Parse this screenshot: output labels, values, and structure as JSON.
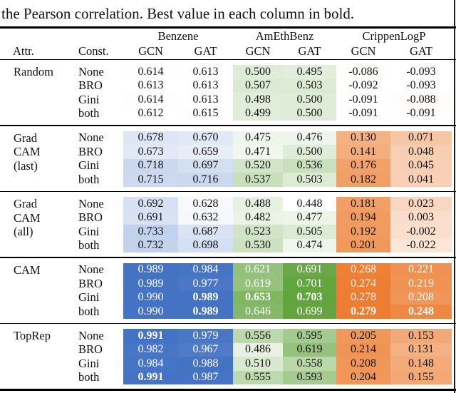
{
  "caption": "the Pearson correlation. Best value in each column in bold.",
  "header": {
    "attr": "Attr.",
    "constraint": "Const.",
    "sub": [
      "GCN",
      "GAT"
    ],
    "groups": [
      {
        "label": "Benzene",
        "color": "#4472c4",
        "min": 0.612,
        "max": 0.991
      },
      {
        "label": "AmEthBenz",
        "color": "#62a43d",
        "min": 0.448,
        "max": 0.703
      },
      {
        "label": "CrippenLogP",
        "color": "#ed7d31",
        "min": -0.093,
        "max": 0.279
      }
    ]
  },
  "sections": [
    {
      "attr_lines": [
        "Random"
      ],
      "white_cols": [],
      "bold": [],
      "rows": [
        {
          "constraint": "None",
          "values": [
            "0.614",
            "0.613",
            "0.500",
            "0.495",
            "-0.086",
            "-0.093"
          ]
        },
        {
          "constraint": "BRO",
          "values": [
            "0.613",
            "0.613",
            "0.507",
            "0.503",
            "-0.092",
            "-0.093"
          ]
        },
        {
          "constraint": "Gini",
          "values": [
            "0.614",
            "0.613",
            "0.498",
            "0.500",
            "-0.091",
            "-0.088"
          ]
        },
        {
          "constraint": "both",
          "values": [
            "0.612",
            "0.615",
            "0.499",
            "0.500",
            "-0.091",
            "-0.091"
          ]
        }
      ]
    },
    {
      "attr_lines": [
        "Grad",
        "CAM",
        "(last)"
      ],
      "white_cols": [],
      "bold": [],
      "rows": [
        {
          "constraint": "None",
          "values": [
            "0.678",
            "0.670",
            "0.475",
            "0.476",
            "0.130",
            "0.071"
          ]
        },
        {
          "constraint": "BRO",
          "values": [
            "0.673",
            "0.659",
            "0.471",
            "0.500",
            "0.141",
            "0.048"
          ]
        },
        {
          "constraint": "Gini",
          "values": [
            "0.718",
            "0.697",
            "0.520",
            "0.536",
            "0.176",
            "0.045"
          ]
        },
        {
          "constraint": "both",
          "values": [
            "0.715",
            "0.716",
            "0.537",
            "0.503",
            "0.182",
            "0.041"
          ]
        }
      ]
    },
    {
      "attr_lines": [
        "Grad",
        "CAM",
        "(all)"
      ],
      "white_cols": [],
      "bold": [],
      "rows": [
        {
          "constraint": "None",
          "values": [
            "0.692",
            "0.628",
            "0.488",
            "0.448",
            "0.181",
            "0.023"
          ]
        },
        {
          "constraint": "BRO",
          "values": [
            "0.691",
            "0.632",
            "0.482",
            "0.477",
            "0.194",
            "0.003"
          ]
        },
        {
          "constraint": "Gini",
          "values": [
            "0.733",
            "0.687",
            "0.523",
            "0.505",
            "0.192",
            "-0.002"
          ]
        },
        {
          "constraint": "both",
          "values": [
            "0.732",
            "0.698",
            "0.530",
            "0.474",
            "0.201",
            "-0.022"
          ]
        }
      ]
    },
    {
      "attr_lines": [
        "CAM"
      ],
      "white_cols": [
        0,
        1,
        2,
        3,
        4,
        5
      ],
      "bold": [
        [
          2,
          1
        ],
        [
          2,
          2
        ],
        [
          2,
          3
        ],
        [
          3,
          1
        ],
        [
          3,
          4
        ],
        [
          3,
          5
        ]
      ],
      "rows": [
        {
          "constraint": "None",
          "values": [
            "0.989",
            "0.984",
            "0.621",
            "0.691",
            "0.268",
            "0.221"
          ]
        },
        {
          "constraint": "BRO",
          "values": [
            "0.989",
            "0.977",
            "0.619",
            "0.701",
            "0.274",
            "0.219"
          ]
        },
        {
          "constraint": "Gini",
          "values": [
            "0.990",
            "0.989",
            "0.653",
            "0.703",
            "0.278",
            "0.208"
          ]
        },
        {
          "constraint": "both",
          "values": [
            "0.990",
            "0.989",
            "0.646",
            "0.699",
            "0.279",
            "0.248"
          ]
        }
      ]
    },
    {
      "attr_lines": [
        "TopRep"
      ],
      "white_cols": [
        0,
        1
      ],
      "bold": [
        [
          0,
          0
        ],
        [
          3,
          0
        ]
      ],
      "rows": [
        {
          "constraint": "None",
          "values": [
            "0.991",
            "0.979",
            "0.556",
            "0.595",
            "0.205",
            "0.153"
          ]
        },
        {
          "constraint": "BRO",
          "values": [
            "0.982",
            "0.967",
            "0.486",
            "0.619",
            "0.214",
            "0.131"
          ]
        },
        {
          "constraint": "Gini",
          "values": [
            "0.984",
            "0.988",
            "0.510",
            "0.558",
            "0.208",
            "0.148"
          ]
        },
        {
          "constraint": "both",
          "values": [
            "0.991",
            "0.987",
            "0.555",
            "0.593",
            "0.204",
            "0.155"
          ]
        }
      ]
    }
  ]
}
